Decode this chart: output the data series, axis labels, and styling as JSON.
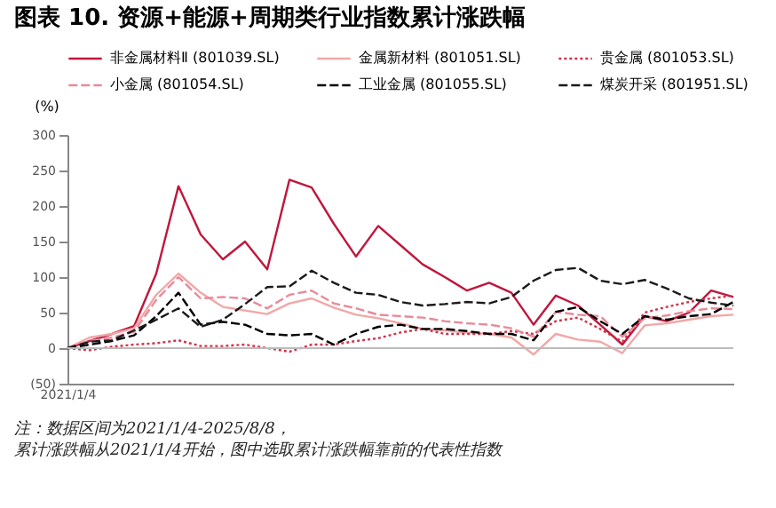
{
  "chart_data": {
    "type": "line",
    "title": "图表 10. 资源+能源+周期类行业指数累计涨跌幅",
    "ylabel": "(%)",
    "categories": [
      "2021/1/4",
      null,
      null,
      null,
      null,
      null,
      null,
      null,
      null,
      null,
      null,
      null,
      null,
      null,
      null,
      null,
      null,
      null,
      null,
      null,
      null,
      null,
      null,
      null,
      null,
      null,
      null,
      null,
      null,
      null,
      null
    ],
    "series": [
      {
        "name": "非金属材料Ⅱ (801039.SL)",
        "color": "#c0163c",
        "line_style": "solid",
        "values": [
          0,
          10,
          20,
          31,
          105,
          228,
          160,
          125,
          150,
          111,
          237,
          226,
          175,
          129,
          172,
          145,
          118,
          100,
          81,
          92,
          78,
          33,
          74,
          60,
          33,
          5,
          45,
          38,
          50,
          81,
          72
        ]
      },
      {
        "name": "金属新材料 (801051.SL)",
        "color": "#f2a7a7",
        "line_style": "solid",
        "values": [
          0,
          15,
          20,
          28,
          75,
          105,
          78,
          58,
          53,
          48,
          63,
          70,
          57,
          47,
          42,
          35,
          27,
          25,
          22,
          20,
          15,
          -9,
          20,
          12,
          9,
          -7,
          32,
          35,
          40,
          45,
          47
        ]
      },
      {
        "name": "贵金属 (801053.SL)",
        "color": "#d0334a",
        "line_style": "dotted",
        "values": [
          0,
          -3,
          2,
          5,
          7,
          11,
          3,
          3,
          5,
          0,
          -5,
          5,
          5,
          10,
          14,
          22,
          27,
          20,
          20,
          20,
          24,
          20,
          38,
          43,
          27,
          9,
          50,
          58,
          65,
          70,
          74
        ]
      },
      {
        "name": "小金属 (801054.SL)",
        "color": "#e88a9a",
        "line_style": "dashed",
        "values": [
          0,
          10,
          15,
          23,
          68,
          100,
          70,
          72,
          70,
          56,
          75,
          81,
          63,
          56,
          47,
          45,
          43,
          38,
          35,
          33,
          28,
          16,
          51,
          47,
          45,
          16,
          42,
          46,
          52,
          56,
          55
        ]
      },
      {
        "name": "工业金属 (801055.SL)",
        "color": "#000000",
        "line_style": "dashed",
        "values": [
          0,
          5,
          10,
          18,
          45,
          78,
          33,
          37,
          33,
          20,
          18,
          20,
          5,
          20,
          30,
          33,
          27,
          27,
          24,
          20,
          20,
          11,
          51,
          58,
          38,
          20,
          45,
          40,
          45,
          48,
          65
        ]
      },
      {
        "name": "煤炭开采 (801951.SL)",
        "color": "#1a1a1a",
        "line_style": "dashed",
        "values": [
          0,
          9,
          11,
          25,
          40,
          56,
          30,
          40,
          62,
          86,
          87,
          109,
          92,
          78,
          75,
          65,
          60,
          62,
          65,
          63,
          72,
          95,
          110,
          113,
          95,
          90,
          96,
          84,
          70,
          64,
          60
        ]
      }
    ],
    "ylim": [
      -50,
      300
    ],
    "yticks": [
      {
        "value": -50,
        "label": "(50)"
      },
      0,
      50,
      100,
      150,
      200,
      250,
      300
    ],
    "ref_lines": [
      {
        "axis": "y",
        "value": 0,
        "color": "#bbbbbb"
      }
    ],
    "grid": false,
    "legend": "top",
    "annotations": [
      "注：数据区间为2021/1/4-2025/8/8，",
      "累计涨跌幅从2021/1/4开始，图中选取累计涨跌幅靠前的代表性指数"
    ]
  }
}
